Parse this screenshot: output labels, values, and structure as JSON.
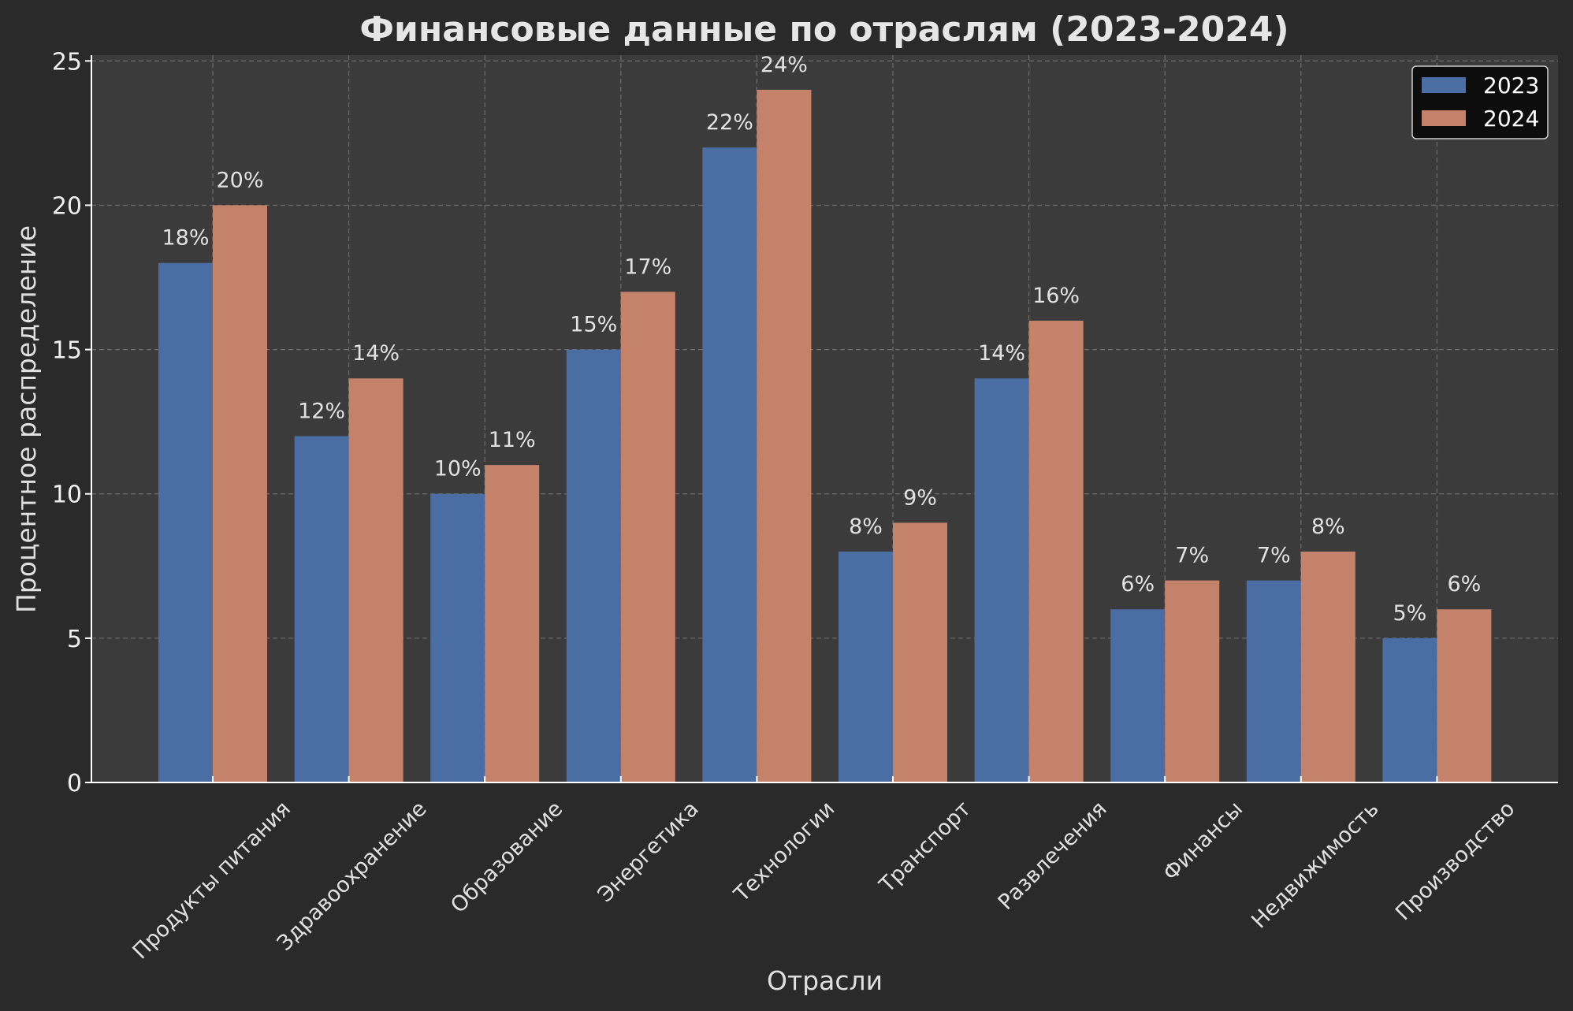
{
  "chart_data": {
    "type": "bar",
    "title": "Финансовые данные по отраслям (2023-2024)",
    "xlabel": "Отрасли",
    "ylabel": "Процентное распределение",
    "ylim": [
      0,
      25.2
    ],
    "yticks": [
      0,
      5,
      10,
      15,
      20,
      25
    ],
    "grid": true,
    "legend_position": "top-right",
    "value_suffix": "%",
    "categories": [
      "Продукты питания",
      "Здравоохранение",
      "Образование",
      "Энергетика",
      "Технологии",
      "Транспорт",
      "Развлечения",
      "Финансы",
      "Недвижимость",
      "Производство"
    ],
    "series": [
      {
        "name": "2023",
        "color": "#4a6ea3",
        "values": [
          18,
          12,
          10,
          15,
          22,
          8,
          14,
          6,
          7,
          5
        ]
      },
      {
        "name": "2024",
        "color": "#c4826a",
        "values": [
          20,
          14,
          11,
          17,
          24,
          9,
          16,
          7,
          8,
          6
        ]
      }
    ],
    "colors": {
      "background": "#2a2a2a",
      "plot_background": "#3b3b3b",
      "axis": "#ffffff"
    }
  }
}
